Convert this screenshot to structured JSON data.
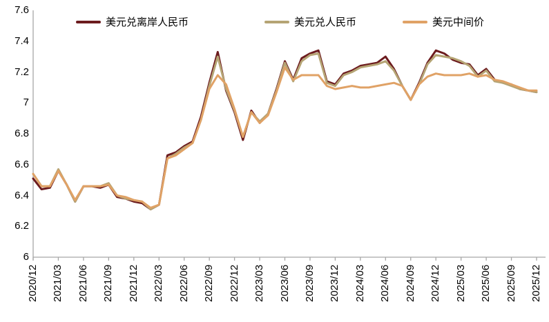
{
  "legend": [
    {
      "label": "美元兑离岸人民币",
      "color": "#6C1B1E"
    },
    {
      "label": "美元兑人民币",
      "color": "#B5A474"
    },
    {
      "label": "美元中间价",
      "color": "#E0A266"
    }
  ],
  "axis": {
    "color": "#A6A6A6",
    "yticks": [
      "7.6",
      "7.4",
      "7.2",
      "7",
      "6.8",
      "6.6",
      "6.4",
      "6.2",
      "6"
    ],
    "x_labels_shown": [
      "2020/12",
      "2021/03",
      "2021/06",
      "2021/09",
      "2021/12",
      "2022/03",
      "2022/06",
      "2022/09",
      "2022/12",
      "2023/03",
      "2023/06",
      "2023/09",
      "2023/12",
      "2024/03",
      "2024/06",
      "2024/09",
      "2024/12",
      "2025/03",
      "2025/06",
      "2025/09",
      "2025/12"
    ]
  },
  "chart_data": {
    "type": "line",
    "title": "",
    "xlabel": "",
    "ylabel": "",
    "ylim": [
      6,
      7.6
    ],
    "ytick_step": 0.2,
    "grid": false,
    "legend_position": "top",
    "categories": [
      "2020/12",
      "2021/01",
      "2021/02",
      "2021/03",
      "2021/04",
      "2021/05",
      "2021/06",
      "2021/07",
      "2021/08",
      "2021/09",
      "2021/10",
      "2021/11",
      "2021/12",
      "2022/01",
      "2022/02",
      "2022/03",
      "2022/04",
      "2022/05",
      "2022/06",
      "2022/07",
      "2022/08",
      "2022/09",
      "2022/10",
      "2022/11",
      "2022/12",
      "2023/01",
      "2023/02",
      "2023/03",
      "2023/04",
      "2023/05",
      "2023/06",
      "2023/07",
      "2023/08",
      "2023/09",
      "2023/10",
      "2023/11",
      "2023/12",
      "2024/01",
      "2024/02",
      "2024/03",
      "2024/04",
      "2024/05",
      "2024/06",
      "2024/07",
      "2024/08",
      "2024/09",
      "2024/10",
      "2024/11",
      "2024/12",
      "2025/01",
      "2025/02",
      "2025/03",
      "2025/04",
      "2025/05",
      "2025/06",
      "2025/07",
      "2025/08",
      "2025/09",
      "2025/10",
      "2025/11",
      "2025/12"
    ],
    "series": [
      {
        "name": "美元兑离岸人民币",
        "color": "#6C1B1E",
        "values": [
          6.51,
          6.44,
          6.45,
          6.56,
          6.47,
          6.36,
          6.46,
          6.46,
          6.45,
          6.47,
          6.39,
          6.38,
          6.36,
          6.35,
          6.31,
          6.34,
          6.66,
          6.68,
          6.72,
          6.75,
          6.91,
          7.13,
          7.33,
          7.08,
          6.94,
          6.76,
          6.95,
          6.87,
          6.93,
          7.09,
          7.27,
          7.15,
          7.29,
          7.32,
          7.34,
          7.14,
          7.12,
          7.19,
          7.21,
          7.24,
          7.25,
          7.26,
          7.3,
          7.22,
          7.11,
          7.02,
          7.13,
          7.26,
          7.34,
          7.32,
          7.28,
          7.26,
          7.25,
          7.18,
          7.22,
          7.15,
          7.13,
          7.12,
          7.09,
          7.08,
          7.07
        ]
      },
      {
        "name": "美元兑人民币",
        "color": "#B5A474",
        "values": [
          6.54,
          6.46,
          6.46,
          6.57,
          6.47,
          6.36,
          6.46,
          6.46,
          6.46,
          6.48,
          6.4,
          6.38,
          6.37,
          6.36,
          6.31,
          6.34,
          6.64,
          6.67,
          6.71,
          6.74,
          6.89,
          7.11,
          7.3,
          7.09,
          6.95,
          6.78,
          6.94,
          6.88,
          6.93,
          7.08,
          7.26,
          7.14,
          7.27,
          7.31,
          7.32,
          7.13,
          7.11,
          7.18,
          7.2,
          7.23,
          7.24,
          7.25,
          7.27,
          7.21,
          7.11,
          7.02,
          7.12,
          7.25,
          7.31,
          7.3,
          7.29,
          7.27,
          7.24,
          7.17,
          7.21,
          7.14,
          7.13,
          7.11,
          7.09,
          7.08,
          7.07
        ]
      },
      {
        "name": "美元中间价",
        "color": "#E0A266",
        "values": [
          6.54,
          6.46,
          6.46,
          6.56,
          6.47,
          6.37,
          6.46,
          6.46,
          6.46,
          6.47,
          6.4,
          6.39,
          6.37,
          6.36,
          6.32,
          6.34,
          6.64,
          6.66,
          6.7,
          6.74,
          6.89,
          7.09,
          7.18,
          7.12,
          6.96,
          6.78,
          6.94,
          6.87,
          6.92,
          7.07,
          7.23,
          7.15,
          7.18,
          7.18,
          7.18,
          7.11,
          7.09,
          7.1,
          7.11,
          7.1,
          7.1,
          7.11,
          7.12,
          7.13,
          7.11,
          7.02,
          7.12,
          7.17,
          7.19,
          7.18,
          7.18,
          7.18,
          7.19,
          7.17,
          7.18,
          7.15,
          7.14,
          7.12,
          7.1,
          7.08,
          7.08
        ]
      }
    ]
  }
}
